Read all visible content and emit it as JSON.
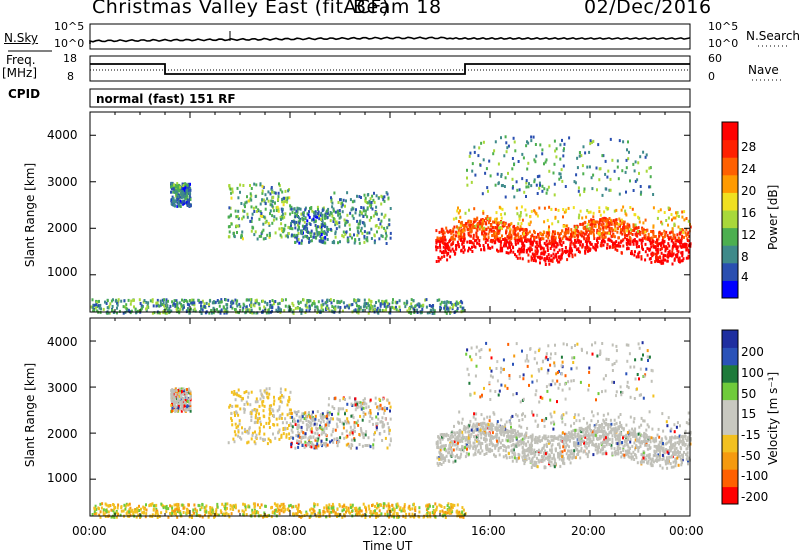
{
  "header": {
    "title": "Christmas Valley East (fitACF)",
    "beam": "Beam 18",
    "date": "02/Dec/2016"
  },
  "panels": {
    "nsky_label": "N.Sky",
    "nsearch_label": "N.Search",
    "nsky_ticks": [
      "10^5",
      "10^0"
    ],
    "nsearch_ticks": [
      "10^5",
      "10^0"
    ],
    "freq_label": "Freq.",
    "freq_unit": "[MHz]",
    "freq_ticks": [
      "18",
      "8"
    ],
    "nave_label": "Nave",
    "nave_ticks": [
      "60",
      "0"
    ],
    "cpid_label": "CPID",
    "cpid_value": "normal (fast) 151 RF"
  },
  "colors": {
    "power_scale": [
      "#0000ff",
      "#2a4fb0",
      "#3f8a8a",
      "#4caf50",
      "#a8d83a",
      "#f0e020",
      "#ff9a00",
      "#ff6000",
      "#ff2000",
      "#ff0000"
    ],
    "velocity_scale": [
      "#1f2fa0",
      "#2a52b8",
      "#1e7a3a",
      "#6fca3a",
      "#c8c8c0",
      "#c8c8c0",
      "#f2c020",
      "#f59a10",
      "#ff6000",
      "#ff0000"
    ],
    "ground_scatter": "#c0c0b8"
  },
  "chart_data": [
    {
      "type": "heatmap",
      "name": "Power",
      "ylabel": "Slant Range [km]",
      "yticks": [
        "4000",
        "3000",
        "2000",
        "1000"
      ],
      "ylim": [
        200,
        4500
      ],
      "xlim_hours": [
        0,
        24
      ],
      "colorbar_label": "Power [dB]",
      "colorbar_ticks": [
        "28",
        "24",
        "20",
        "16",
        "12",
        "8",
        "4"
      ],
      "regions": [
        {
          "t0": 3.2,
          "t1": 4.0,
          "r0": 2500,
          "r1": 3000,
          "level": 0.25
        },
        {
          "t0": 5.5,
          "t1": 8.0,
          "r0": 1800,
          "r1": 3000,
          "level": 0.35
        },
        {
          "t0": 8.0,
          "t1": 9.5,
          "r0": 1700,
          "r1": 2500,
          "level": 0.25
        },
        {
          "t0": 9.5,
          "t1": 12.0,
          "r0": 1700,
          "r1": 2800,
          "level": 0.3
        },
        {
          "t0": 13.8,
          "t1": 24.0,
          "r0": 1400,
          "r1": 2100,
          "level": 0.95
        },
        {
          "t0": 14.5,
          "t1": 24.0,
          "r0": 1900,
          "r1": 2500,
          "level": 0.6
        },
        {
          "t0": 15.0,
          "t1": 22.5,
          "r0": 2700,
          "r1": 4000,
          "level": 0.3
        },
        {
          "t0": 0.0,
          "t1": 15.0,
          "r0": 200,
          "r1": 500,
          "level": 0.3
        }
      ]
    },
    {
      "type": "heatmap",
      "name": "Velocity",
      "ylabel": "Slant Range [km]",
      "yticks": [
        "4000",
        "3000",
        "2000",
        "1000"
      ],
      "ylim": [
        200,
        4500
      ],
      "xlabel": "Time UT",
      "xticks": [
        "00:00",
        "04:00",
        "08:00",
        "12:00",
        "16:00",
        "20:00",
        "00:00"
      ],
      "xlim_hours": [
        0,
        24
      ],
      "colorbar_label": "Velocity [m s⁻¹]",
      "colorbar_ticks": [
        "200",
        "100",
        "50",
        "15",
        "-15",
        "-50",
        "-100",
        "-200"
      ]
    }
  ]
}
